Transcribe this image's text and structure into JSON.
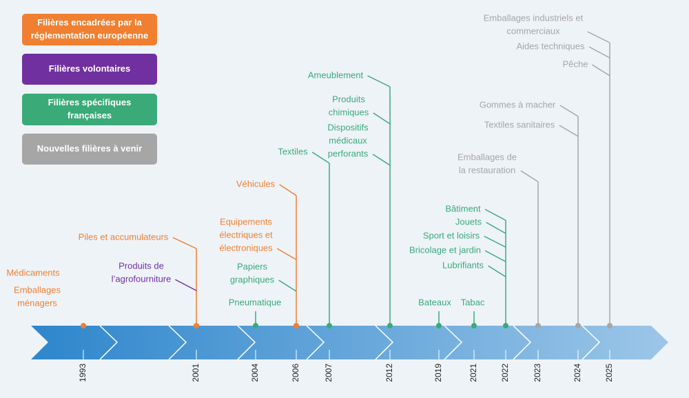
{
  "legend": [
    {
      "label": [
        "Filières encadrées par la",
        "réglementation européenne"
      ],
      "color": "#f07f31"
    },
    {
      "label": [
        "Filières volontaires"
      ],
      "color": "#7030a0"
    },
    {
      "label": [
        "Filières spécifiques",
        "françaises"
      ],
      "color": "#3aaa78"
    },
    {
      "label": [
        "Nouvelles filières à venir"
      ],
      "color": "#a6a6a6"
    }
  ],
  "timeline": [
    {
      "year": "1993",
      "items": [
        {
          "label": [
            "Médicaments"
          ],
          "color": "#f07f31"
        },
        {
          "label": [
            "Emballages",
            "ménagers"
          ],
          "color": "#f07f31"
        }
      ]
    },
    {
      "year": "2001",
      "items": [
        {
          "label": [
            "Piles et accumulateurs"
          ],
          "color": "#f07f31"
        },
        {
          "label": [
            "Produits de",
            "l’agrofourniture"
          ],
          "color": "#7030a0"
        }
      ]
    },
    {
      "year": "2004",
      "items": [
        {
          "label": [
            "Pneumatique"
          ],
          "color": "#3aaa78"
        }
      ]
    },
    {
      "year": "2006",
      "items": [
        {
          "label": [
            "Véhicules"
          ],
          "color": "#f07f31"
        },
        {
          "label": [
            "Equipements",
            "électriques et",
            "électroniques"
          ],
          "color": "#f07f31"
        },
        {
          "label": [
            "Papiers",
            "graphiques"
          ],
          "color": "#3aaa78"
        }
      ]
    },
    {
      "year": "2007",
      "items": [
        {
          "label": [
            "Textiles"
          ],
          "color": "#3aaa78"
        }
      ]
    },
    {
      "year": "2012",
      "items": [
        {
          "label": [
            "Ameublement"
          ],
          "color": "#3aaa78"
        },
        {
          "label": [
            "Produits",
            "chimiques"
          ],
          "color": "#3aaa78"
        },
        {
          "label": [
            "Dispositifs",
            "médicaux",
            "perforants"
          ],
          "color": "#3aaa78"
        }
      ]
    },
    {
      "year": "2019",
      "items": [
        {
          "label": [
            "Bateaux"
          ],
          "color": "#3aaa78"
        }
      ]
    },
    {
      "year": "2021",
      "items": [
        {
          "label": [
            "Tabac"
          ],
          "color": "#3aaa78"
        }
      ]
    },
    {
      "year": "2022",
      "items": [
        {
          "label": [
            "Bâtiment"
          ],
          "color": "#3aaa78"
        },
        {
          "label": [
            "Jouets"
          ],
          "color": "#3aaa78"
        },
        {
          "label": [
            "Sport et loisirs"
          ],
          "color": "#3aaa78"
        },
        {
          "label": [
            "Bricolage et jardin"
          ],
          "color": "#3aaa78"
        },
        {
          "label": [
            "Lubrifiants"
          ],
          "color": "#3aaa78"
        }
      ]
    },
    {
      "year": "2023",
      "items": [
        {
          "label": [
            "Emballages de",
            "la restauration"
          ],
          "color": "#a6a6a6"
        }
      ]
    },
    {
      "year": "2024",
      "items": [
        {
          "label": [
            "Gommes à macher"
          ],
          "color": "#a6a6a6"
        },
        {
          "label": [
            "Textiles sanitaires"
          ],
          "color": "#a6a6a6"
        }
      ]
    },
    {
      "year": "2025",
      "items": [
        {
          "label": [
            "Emballages industriels et",
            "commerciaux"
          ],
          "color": "#a6a6a6"
        },
        {
          "label": [
            "Aides techniques"
          ],
          "color": "#a6a6a6"
        },
        {
          "label": [
            "Pêche"
          ],
          "color": "#a6a6a6"
        }
      ]
    }
  ]
}
